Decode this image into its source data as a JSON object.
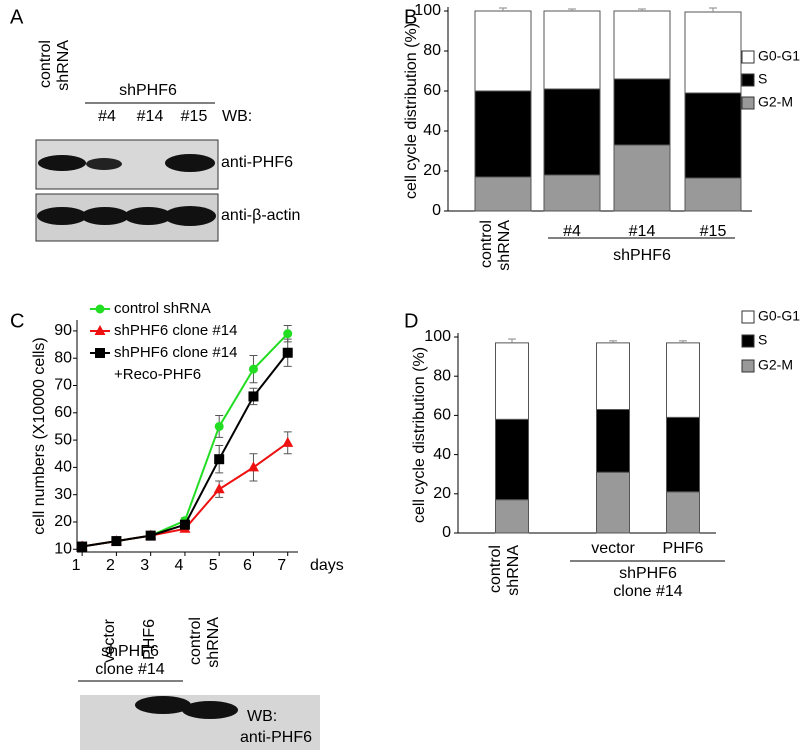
{
  "panel_labels": [
    "A",
    "B",
    "C",
    "D"
  ],
  "blots": [
    {
      "lanes": [
        "control shRNA",
        "#4",
        "#14",
        "#15"
      ],
      "group": "shPHF6",
      "wb": "WB:",
      "antibodies": [
        "anti-PHF6",
        "anti-β-actin"
      ]
    },
    {
      "lanes": [
        "vector",
        "PHF6",
        "control shRNA"
      ],
      "group": "shPHF6 clone #14",
      "wb": "WB:",
      "antibodies": [
        "anti-PHF6"
      ]
    }
  ],
  "chart_data": [
    {
      "type": "stacked_bar",
      "ylabel": "cell cycle distribution (%)",
      "categories": [
        "control shRNA",
        "#4",
        "#14",
        "#15"
      ],
      "category_group": "shPHF6",
      "series": [
        {
          "name": "G2-M",
          "color": "#999999",
          "values": [
            17,
            18,
            33,
            16.5
          ],
          "errors": [
            1,
            1,
            1.5,
            1
          ]
        },
        {
          "name": "S",
          "color": "#000000",
          "values": [
            43,
            43,
            33,
            42.5
          ],
          "errors": [
            1.5,
            2.5,
            2,
            1.5
          ]
        },
        {
          "name": "G0-G1",
          "color": "#ffffff",
          "values": [
            40,
            39,
            34,
            40.5
          ],
          "errors": [
            1.5,
            1,
            1,
            2
          ]
        }
      ],
      "ylim": [
        0,
        100
      ],
      "yticks": [
        0,
        20,
        40,
        60,
        80,
        100
      ]
    },
    {
      "type": "line",
      "xlabel": "days",
      "ylabel": "cell numbers (X10000 cells)",
      "x": [
        1,
        2,
        3,
        4,
        5,
        6,
        7
      ],
      "series": [
        {
          "name": "control shRNA",
          "color": "#22dd22",
          "marker": "circle",
          "values": [
            11,
            13,
            15,
            20.5,
            55,
            76,
            89
          ],
          "errors": [
            1,
            1,
            1,
            1,
            4,
            5,
            3
          ]
        },
        {
          "name": "shPHF6 clone #14",
          "color": "#ee1111",
          "marker": "triangle",
          "values": [
            11,
            13,
            15,
            17.5,
            32,
            40,
            49
          ],
          "errors": [
            1,
            1,
            1,
            1,
            3,
            5,
            4
          ]
        },
        {
          "name": "shPHF6 clone #14 +Reco-PHF6",
          "color": "#000000",
          "marker": "square",
          "values": [
            11,
            13,
            15,
            19,
            43,
            66,
            82
          ],
          "errors": [
            1,
            1,
            1,
            1,
            5,
            3,
            5
          ]
        }
      ],
      "xlim": [
        0.85,
        7.3
      ],
      "xticks": [
        1,
        2,
        3,
        4,
        5,
        6,
        7
      ],
      "ylim": [
        9,
        94
      ],
      "yticks": [
        10,
        20,
        30,
        40,
        50,
        60,
        70,
        80,
        90
      ]
    },
    {
      "type": "stacked_bar",
      "ylabel": "cell cycle distribution (%)",
      "categories": [
        "control shRNA",
        "vector",
        "PHF6"
      ],
      "category_group": "shPHF6 clone #14",
      "series": [
        {
          "name": "G2-M",
          "color": "#999999",
          "values": [
            17,
            31,
            21
          ],
          "errors": [
            1,
            1.5,
            1
          ]
        },
        {
          "name": "S",
          "color": "#000000",
          "values": [
            41,
            32,
            38
          ],
          "errors": [
            1.5,
            1.5,
            1
          ]
        },
        {
          "name": "G0-G1",
          "color": "#ffffff",
          "values": [
            39,
            34,
            38
          ],
          "errors": [
            2,
            1,
            1
          ]
        }
      ],
      "ylim": [
        0,
        100
      ],
      "yticks": [
        0,
        20,
        40,
        60,
        80,
        100
      ]
    }
  ]
}
